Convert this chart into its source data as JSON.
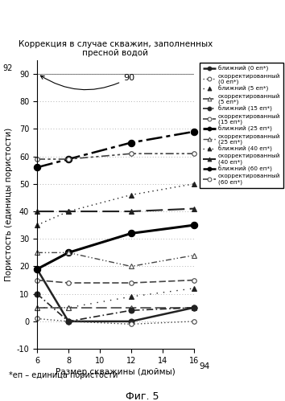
{
  "title": "Коррекция в случае скважин, заполненных\nпресной водой",
  "xlabel": "Размер скважины (дюймы)",
  "ylabel": "Пористость (единицы пористости)",
  "xlim": [
    6,
    16
  ],
  "ylim": [
    -10,
    95
  ],
  "yticks": [
    -10,
    0,
    10,
    20,
    30,
    40,
    50,
    60,
    70,
    80,
    90
  ],
  "ytick_labels": [
    "-10",
    "0",
    "10",
    "20",
    "30",
    "40",
    "50",
    "60",
    "70",
    "80",
    "90"
  ],
  "xticks": [
    6,
    8,
    10,
    12,
    14,
    16
  ],
  "footnote": "*еп – единица пористости",
  "fig_label": "Фиг. 5",
  "x_values": [
    6,
    8,
    12,
    16
  ],
  "series": [
    {
      "label": "ближний (0 еп*)",
      "style": "solid",
      "marker": "o",
      "marker_filled": true,
      "color": "#222222",
      "linewidth": 1.8,
      "markersize": 5,
      "values": [
        19,
        0,
        0,
        5
      ]
    },
    {
      "label": "скорректированный\n(0 еп*)",
      "style": "dotted",
      "marker": "o",
      "marker_filled": false,
      "color": "#444444",
      "linewidth": 1.0,
      "markersize": 4,
      "values": [
        1,
        0,
        -1,
        0
      ]
    },
    {
      "label": "ближний (5 еп*)",
      "style": "loosely dotted",
      "marker": "^",
      "marker_filled": true,
      "color": "#222222",
      "linewidth": 1.0,
      "markersize": 5,
      "values": [
        5,
        5,
        9,
        12
      ]
    },
    {
      "label": "скорректированный\n(5 еп*)",
      "style": "dashed long",
      "marker": "^",
      "marker_filled": false,
      "color": "#444444",
      "linewidth": 1.2,
      "markersize": 4,
      "values": [
        5,
        5,
        5,
        5
      ]
    },
    {
      "label": "ближний (15 еп*)",
      "style": "dash-dot dense",
      "marker": "o",
      "marker_filled": true,
      "color": "#222222",
      "linewidth": 1.2,
      "markersize": 5,
      "values": [
        10,
        0,
        4,
        5
      ]
    },
    {
      "label": "скорректированный\n(15 еп*)",
      "style": "dashed medium",
      "marker": "o",
      "marker_filled": false,
      "color": "#444444",
      "linewidth": 1.2,
      "markersize": 4,
      "values": [
        15,
        14,
        14,
        15
      ]
    },
    {
      "label": "ближний (25 еп*)",
      "style": "solid",
      "marker": "o",
      "marker_filled": true,
      "color": "#000000",
      "linewidth": 2.2,
      "markersize": 6,
      "values": [
        19,
        25,
        32,
        35
      ]
    },
    {
      "label": "скорректированный\n(25 еп*)",
      "style": "dash-dot-dot",
      "marker": "^",
      "marker_filled": false,
      "color": "#444444",
      "linewidth": 1.0,
      "markersize": 4,
      "values": [
        25,
        25,
        20,
        24
      ]
    },
    {
      "label": "ближний (40 еп*)",
      "style": "sparse dotted",
      "marker": "^",
      "marker_filled": true,
      "color": "#222222",
      "linewidth": 1.0,
      "markersize": 5,
      "values": [
        35,
        40,
        46,
        50
      ]
    },
    {
      "label": "скорректированный\n(40 еп*)",
      "style": "long dashed",
      "marker": "^",
      "marker_filled": true,
      "color": "#222222",
      "linewidth": 1.5,
      "markersize": 5,
      "values": [
        40,
        40,
        40,
        41
      ]
    },
    {
      "label": "ближний (60 еп*)",
      "style": "dash-dot long",
      "marker": "o",
      "marker_filled": true,
      "color": "#000000",
      "linewidth": 1.8,
      "markersize": 6,
      "values": [
        56,
        59,
        65,
        69
      ]
    },
    {
      "label": "скорректированный\n(60 еп*)",
      "style": "dash-dash-dot",
      "marker": "o",
      "marker_filled": false,
      "color": "#444444",
      "linewidth": 1.2,
      "markersize": 4,
      "values": [
        59,
        59,
        61,
        61
      ]
    }
  ]
}
